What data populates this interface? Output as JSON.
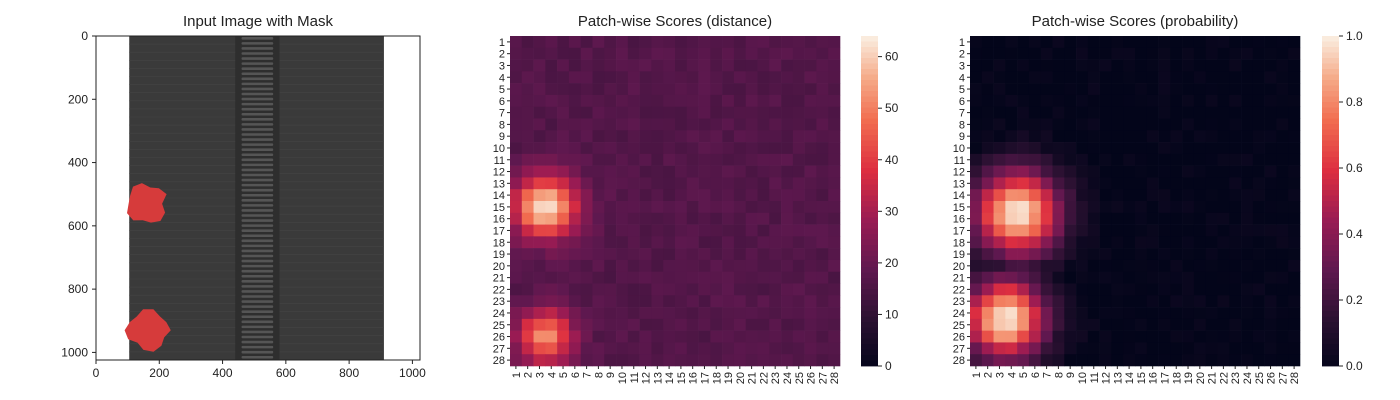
{
  "chart_data": [
    {
      "type": "image",
      "title": "Input Image with Mask",
      "xticks": [
        0,
        200,
        400,
        600,
        800,
        1000
      ],
      "yticks": [
        0,
        200,
        400,
        600,
        800,
        1000
      ],
      "xlim": [
        0,
        1024
      ],
      "ylim": [
        1024,
        0
      ],
      "image": {
        "background": "#ffffff",
        "fabric_color": "#3a3a3a",
        "zipper_teeth_color": "#555555",
        "fabric_x_range": [
          105,
          910
        ],
        "teeth_x_range": [
          440,
          580
        ],
        "defects": [
          {
            "color": "#d63b3b",
            "x": [
              90,
              230
            ],
            "y": [
              460,
              600
            ]
          },
          {
            "color": "#d63b3b",
            "x": [
              90,
              240
            ],
            "y": [
              860,
              1000
            ]
          }
        ]
      }
    },
    {
      "type": "heatmap",
      "title": "Patch-wise Scores (distance)",
      "colormap": "rocket",
      "xticklabels": [
        "1",
        "2",
        "3",
        "4",
        "5",
        "6",
        "7",
        "8",
        "9",
        "10",
        "11",
        "12",
        "13",
        "14",
        "15",
        "16",
        "17",
        "18",
        "19",
        "20",
        "21",
        "22",
        "23",
        "24",
        "25",
        "26",
        "27",
        "28"
      ],
      "yticklabels": [
        "1",
        "2",
        "3",
        "4",
        "5",
        "6",
        "7",
        "8",
        "9",
        "10",
        "11",
        "12",
        "13",
        "14",
        "15",
        "16",
        "17",
        "18",
        "19",
        "20",
        "21",
        "22",
        "23",
        "24",
        "25",
        "26",
        "27",
        "28"
      ],
      "colorbar": {
        "min": 0,
        "max": 64,
        "ticks": [
          0,
          10,
          20,
          30,
          40,
          50,
          60
        ]
      },
      "base_value": 17,
      "hotspots": [
        {
          "row": 15,
          "col": 3.5,
          "radius": 2.6,
          "peak": 64
        },
        {
          "row": 26,
          "col": 3.5,
          "radius": 2.3,
          "peak": 52
        }
      ]
    },
    {
      "type": "heatmap",
      "title": "Patch-wise Scores (probability)",
      "colormap": "rocket",
      "xticklabels": [
        "1",
        "2",
        "3",
        "4",
        "5",
        "6",
        "7",
        "8",
        "9",
        "10",
        "11",
        "12",
        "13",
        "14",
        "15",
        "16",
        "17",
        "18",
        "19",
        "20",
        "21",
        "22",
        "23",
        "24",
        "25",
        "26",
        "27",
        "28"
      ],
      "yticklabels": [
        "1",
        "2",
        "3",
        "4",
        "5",
        "6",
        "7",
        "8",
        "9",
        "10",
        "11",
        "12",
        "13",
        "14",
        "15",
        "16",
        "17",
        "18",
        "19",
        "20",
        "21",
        "22",
        "23",
        "24",
        "25",
        "26",
        "27",
        "28"
      ],
      "colorbar": {
        "min": 0.0,
        "max": 1.0,
        "ticks": [
          "0.0",
          "0.2",
          "0.4",
          "0.6",
          "0.8",
          "1.0"
        ]
      },
      "base_value": 0.0,
      "hotspots": [
        {
          "row": 15.5,
          "col": 4.5,
          "radius": 3.6,
          "peak": 1.0
        },
        {
          "row": 24.5,
          "col": 3.5,
          "radius": 3.4,
          "peak": 1.0
        }
      ]
    }
  ]
}
